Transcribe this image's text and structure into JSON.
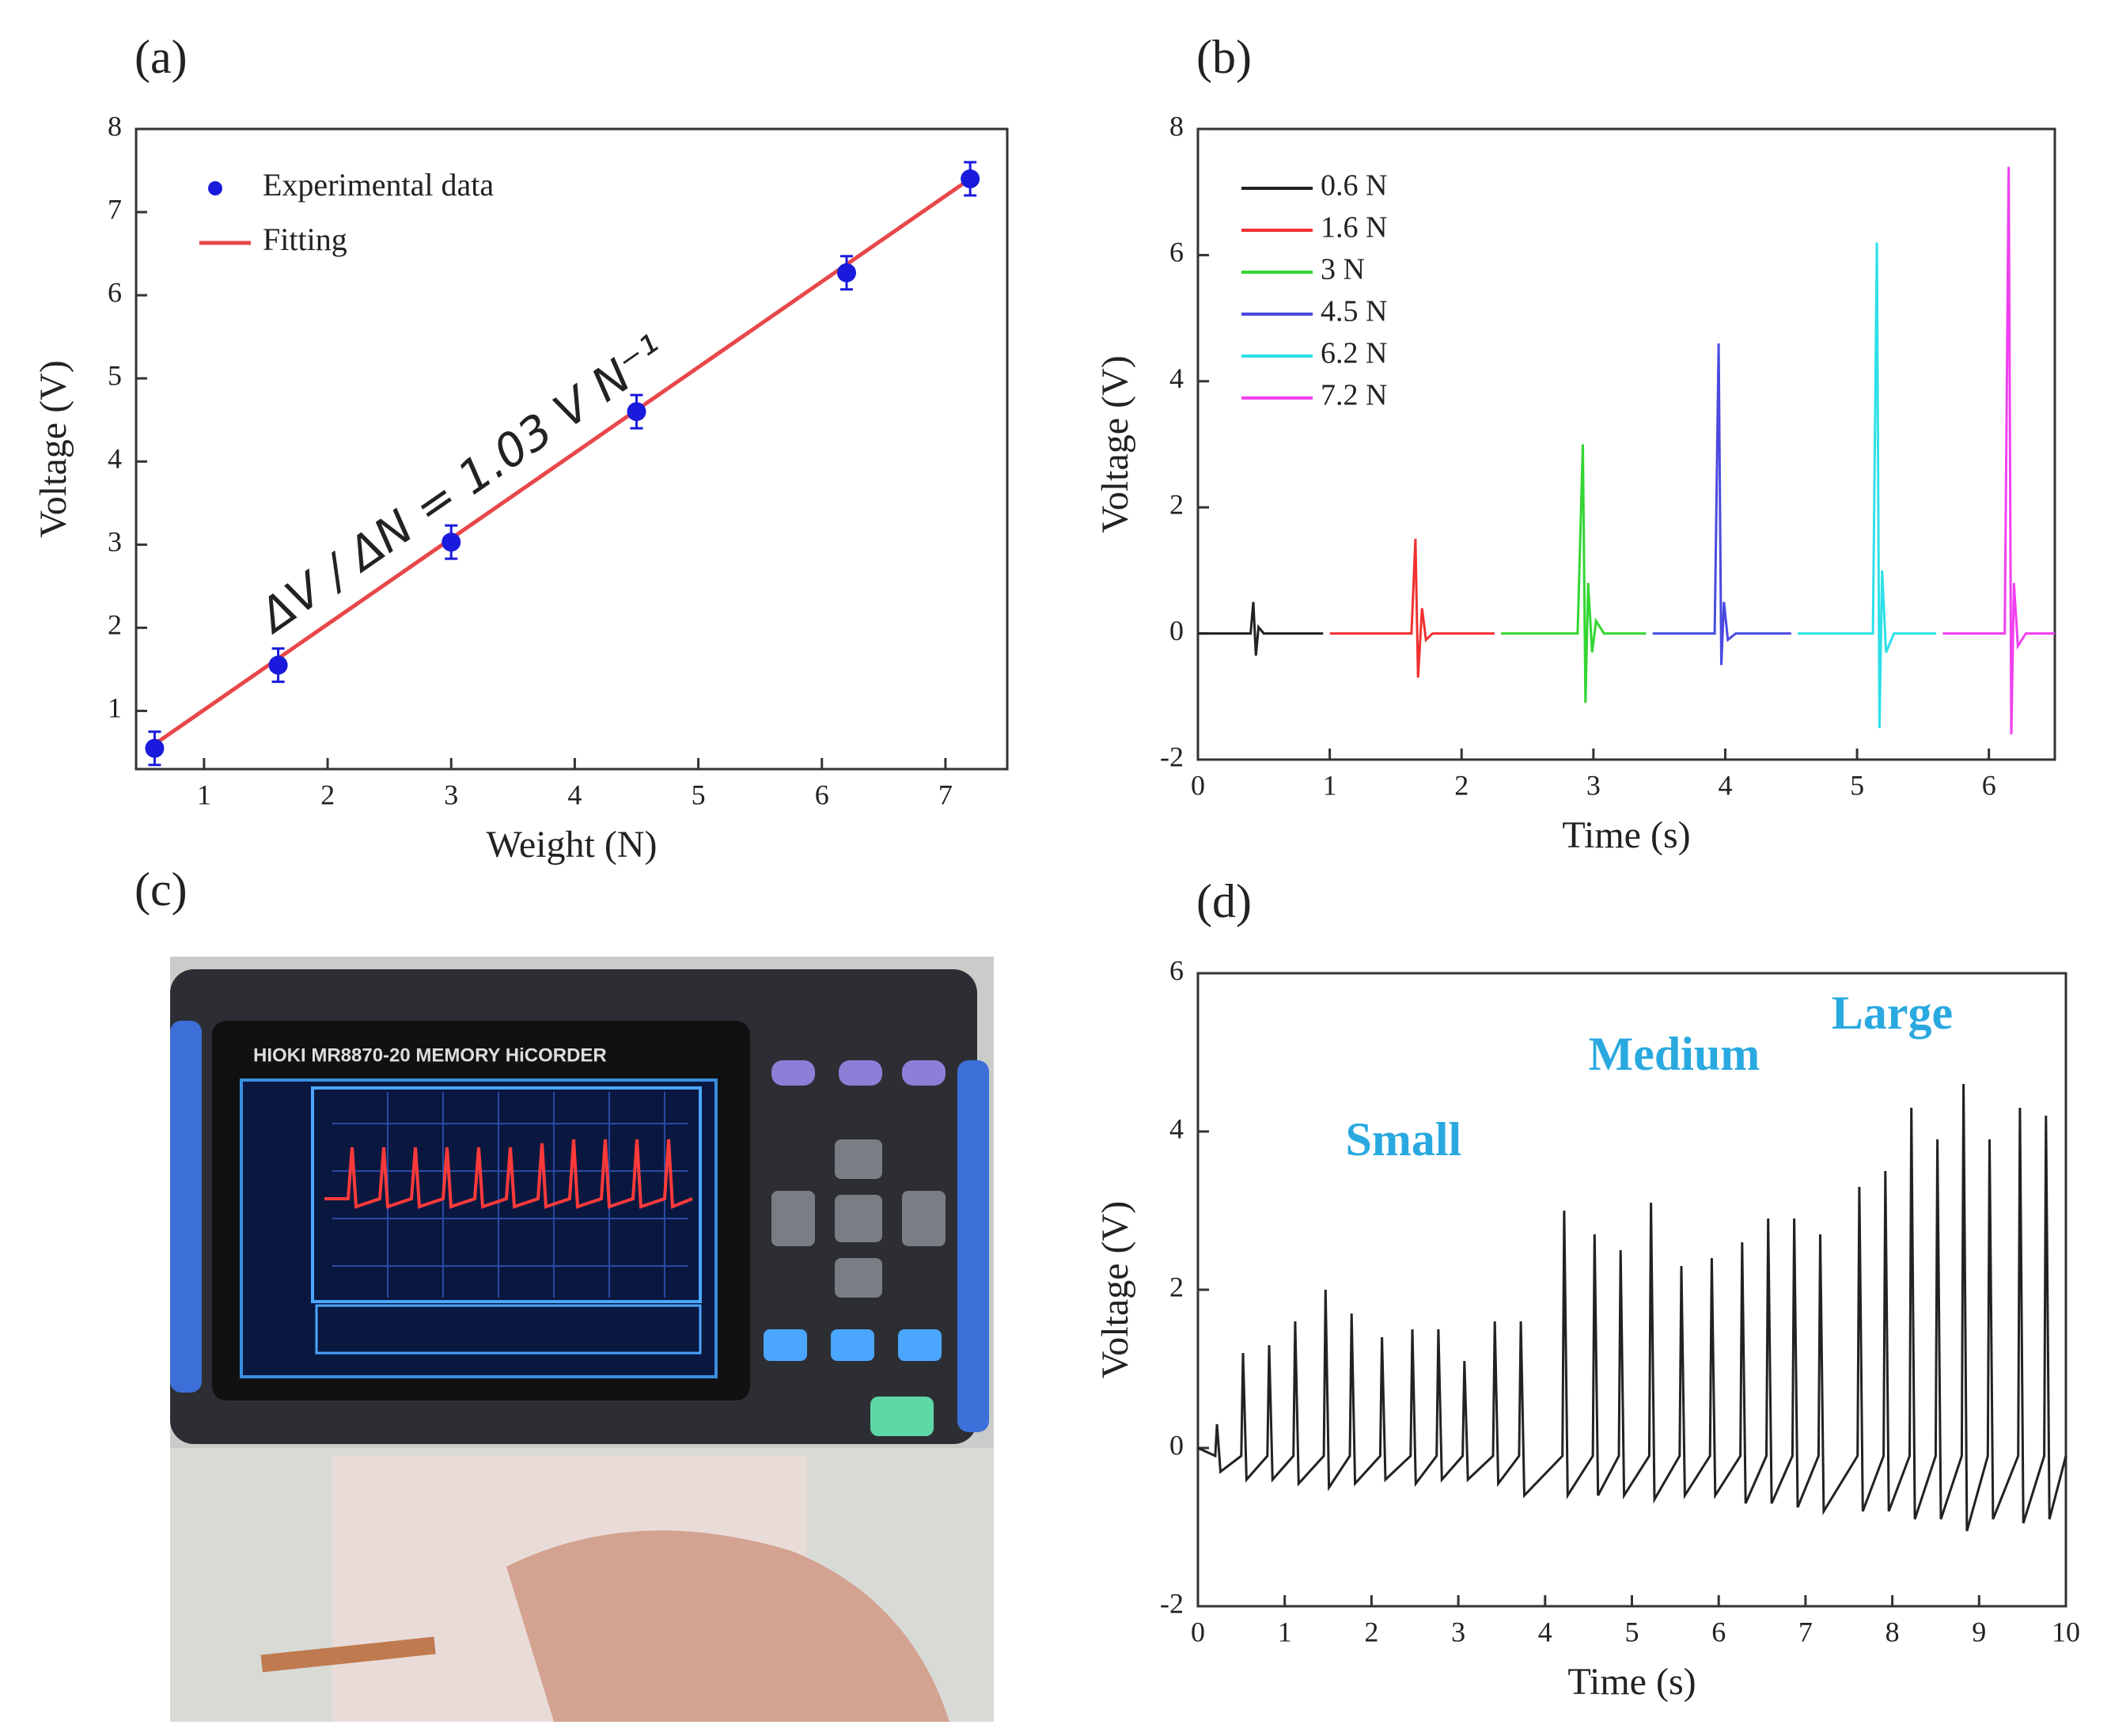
{
  "chart_data": [
    {
      "type": "scatter",
      "label": "(a)",
      "xlabel": "Weight (N)",
      "ylabel": "Voltage (V)",
      "annotation": "ΔV / ΔN = 1.03 V N⁻¹",
      "series": [
        {
          "name": "Experimental data",
          "color": "#1a1adc",
          "x": [
            0.6,
            1.6,
            3,
            4.5,
            6.2,
            7.2
          ],
          "values": [
            0.55,
            1.55,
            3.03,
            4.6,
            6.27,
            7.4
          ],
          "errors": [
            0.2,
            0.2,
            0.2,
            0.2,
            0.2,
            0.2
          ]
        }
      ],
      "fit": {
        "name": "Fitting",
        "color": "#e8474a",
        "x": [
          0.6,
          7.2
        ],
        "values": [
          0.6,
          7.4
        ]
      },
      "xlim": [
        0.45,
        7.5
      ],
      "ylim": [
        0.3,
        8
      ],
      "xticks": [
        1,
        2,
        3,
        4,
        5,
        6,
        7
      ],
      "yticks": [
        1,
        2,
        3,
        4,
        5,
        6,
        7,
        8
      ],
      "legend": "upper left"
    },
    {
      "type": "line",
      "label": "(b)",
      "xlabel": "Time (s)",
      "ylabel": "Voltage (V)",
      "series": [
        {
          "name": "0.6 N",
          "color": "#222222",
          "x": [
            0,
            0.4,
            0.42,
            0.44,
            0.46,
            0.5,
            0.95
          ],
          "values": [
            0,
            0,
            0.5,
            -0.35,
            0.1,
            0,
            0
          ]
        },
        {
          "name": "1.6 N",
          "color": "#f03030",
          "x": [
            1.0,
            1.62,
            1.65,
            1.67,
            1.7,
            1.73,
            1.78,
            2.25
          ],
          "values": [
            0,
            0,
            1.5,
            -0.7,
            0.4,
            -0.1,
            0,
            0
          ]
        },
        {
          "name": "3 N",
          "color": "#33d633",
          "x": [
            2.3,
            2.88,
            2.92,
            2.94,
            2.96,
            2.99,
            3.02,
            3.08,
            3.4
          ],
          "values": [
            0,
            0,
            3.0,
            -1.1,
            0.8,
            -0.3,
            0.2,
            0,
            0
          ]
        },
        {
          "name": "4.5 N",
          "color": "#4a4ae0",
          "x": [
            3.45,
            3.92,
            3.95,
            3.97,
            3.99,
            4.02,
            4.08,
            4.5
          ],
          "values": [
            0,
            0,
            4.6,
            -0.5,
            0.5,
            -0.1,
            0,
            0
          ]
        },
        {
          "name": "6.2 N",
          "color": "#2ee0e8",
          "x": [
            4.55,
            5.12,
            5.15,
            5.17,
            5.19,
            5.22,
            5.28,
            5.6
          ],
          "values": [
            0,
            0,
            6.2,
            -1.5,
            1.0,
            -0.3,
            0,
            0
          ]
        },
        {
          "name": "7.2 N",
          "color": "#f040f0",
          "x": [
            5.65,
            6.12,
            6.15,
            6.17,
            6.19,
            6.22,
            6.28,
            6.5
          ],
          "values": [
            0,
            0,
            7.4,
            -1.6,
            0.8,
            -0.2,
            0,
            0
          ]
        }
      ],
      "xlim": [
        0,
        6.5
      ],
      "ylim": [
        -2,
        8
      ],
      "xticks": [
        0,
        1,
        2,
        3,
        4,
        5,
        6
      ],
      "yticks": [
        -2,
        0,
        2,
        4,
        6,
        8
      ],
      "legend": "upper left"
    },
    {
      "type": "line",
      "label": "(d)",
      "xlabel": "Time (s)",
      "ylabel": "Voltage (V)",
      "annotations": [
        "Small",
        "Medium",
        "Large"
      ],
      "annotation_color": "#29a9e0",
      "series": [
        {
          "color": "#222222",
          "x": [
            0,
            0.2,
            0.22,
            0.26,
            0.5,
            0.52,
            0.56,
            0.8,
            0.82,
            0.86,
            1.1,
            1.12,
            1.16,
            1.45,
            1.47,
            1.51,
            1.75,
            1.77,
            1.81,
            2.1,
            2.12,
            2.16,
            2.45,
            2.47,
            2.51,
            2.75,
            2.77,
            2.81,
            3.05,
            3.07,
            3.11,
            3.4,
            3.42,
            3.46,
            3.7,
            3.72,
            3.76,
            4.2,
            4.22,
            4.26,
            4.55,
            4.57,
            4.61,
            4.85,
            4.87,
            4.91,
            5.2,
            5.22,
            5.26,
            5.55,
            5.57,
            5.61,
            5.9,
            5.92,
            5.96,
            6.25,
            6.27,
            6.31,
            6.55,
            6.57,
            6.61,
            6.85,
            6.87,
            6.91,
            7.15,
            7.17,
            7.21,
            7.6,
            7.62,
            7.66,
            7.9,
            7.92,
            7.96,
            8.2,
            8.22,
            8.26,
            8.5,
            8.52,
            8.56,
            8.8,
            8.82,
            8.86,
            9.1,
            9.12,
            9.16,
            9.45,
            9.47,
            9.51,
            9.75,
            9.77,
            9.81,
            10
          ],
          "values": [
            0,
            -0.1,
            0.3,
            -0.3,
            -0.1,
            1.2,
            -0.4,
            -0.1,
            1.3,
            -0.4,
            -0.1,
            1.6,
            -0.45,
            -0.1,
            2.0,
            -0.5,
            -0.1,
            1.7,
            -0.45,
            -0.1,
            1.4,
            -0.4,
            -0.1,
            1.5,
            -0.45,
            -0.1,
            1.5,
            -0.4,
            -0.1,
            1.1,
            -0.4,
            -0.1,
            1.6,
            -0.45,
            -0.1,
            1.6,
            -0.6,
            -0.1,
            3.0,
            -0.6,
            -0.1,
            2.7,
            -0.6,
            -0.1,
            2.5,
            -0.6,
            -0.1,
            3.1,
            -0.65,
            -0.1,
            2.3,
            -0.6,
            -0.1,
            2.4,
            -0.6,
            -0.1,
            2.6,
            -0.7,
            -0.1,
            2.9,
            -0.7,
            -0.1,
            2.9,
            -0.75,
            -0.1,
            2.7,
            -0.8,
            -0.1,
            3.3,
            -0.8,
            -0.1,
            3.5,
            -0.8,
            -0.1,
            4.3,
            -0.9,
            -0.1,
            3.9,
            -0.9,
            -0.1,
            4.6,
            -1.05,
            -0.1,
            3.9,
            -0.9,
            -0.1,
            4.3,
            -0.95,
            -0.1,
            4.2,
            -0.9,
            -0.1
          ]
        }
      ],
      "xlim": [
        0,
        10
      ],
      "ylim": [
        -2,
        6
      ],
      "xticks": [
        0,
        1,
        2,
        3,
        4,
        5,
        6,
        7,
        8,
        9,
        10
      ],
      "yticks": [
        -2,
        0,
        2,
        4,
        6
      ]
    }
  ],
  "photo": {
    "label": "(c)",
    "device_text": "HIOKI MR8870-20 MEMORY HiCORDER"
  }
}
